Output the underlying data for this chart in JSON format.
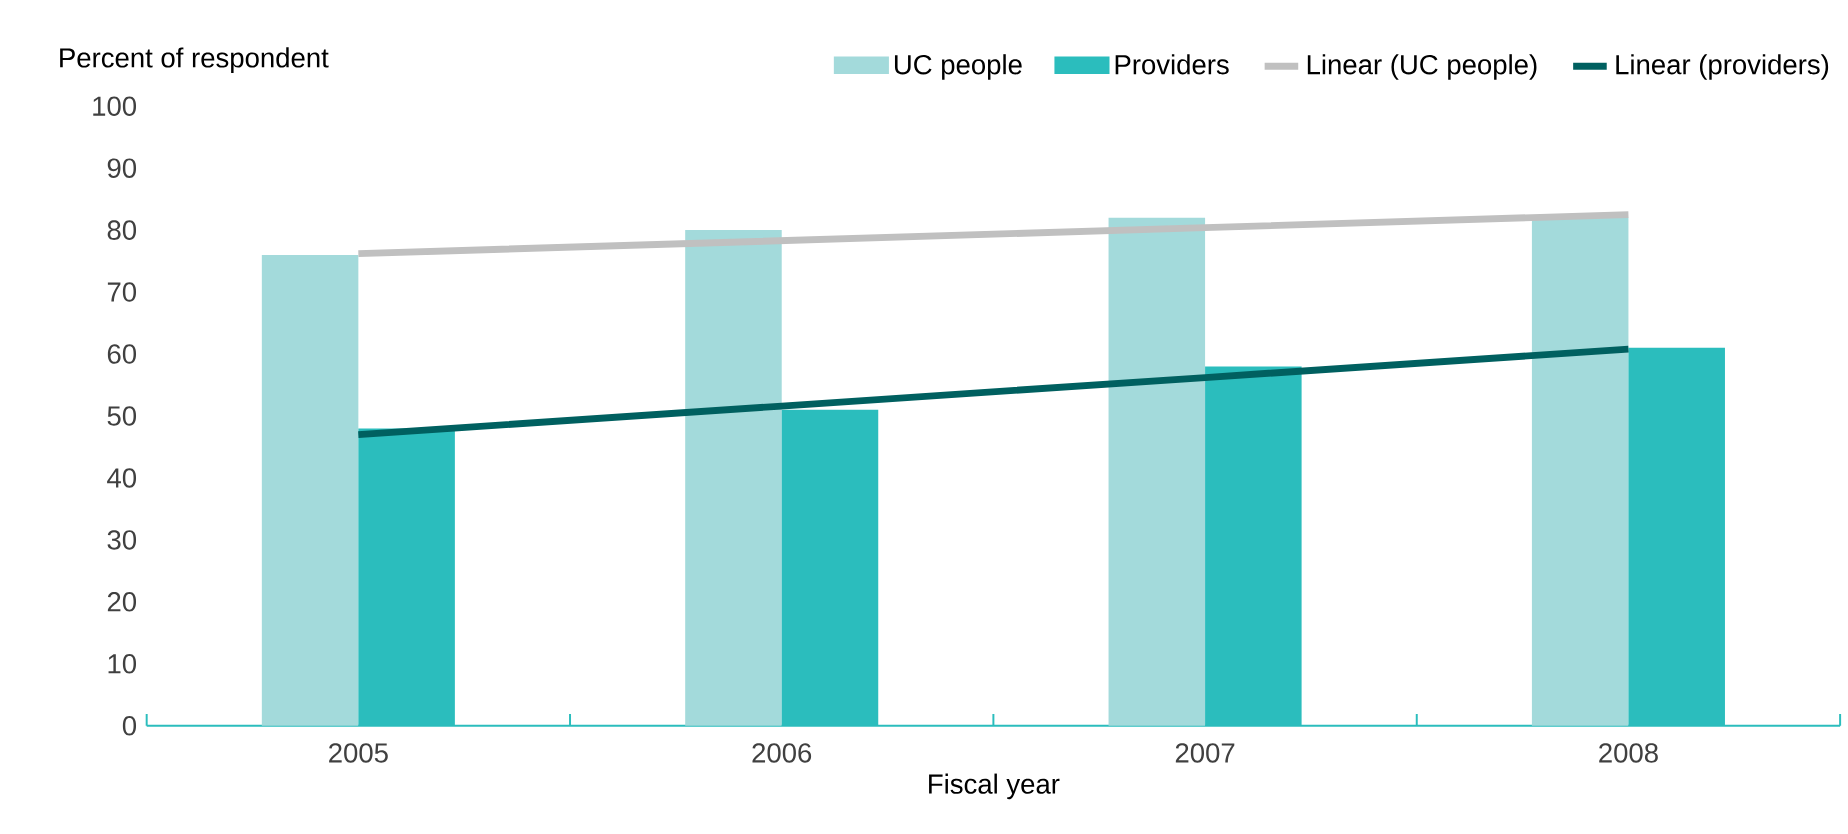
{
  "chart_data": {
    "type": "bar",
    "ylabel": "Percent of respondent",
    "xlabel": "Fiscal year",
    "categories": [
      "2005",
      "2006",
      "2007",
      "2008"
    ],
    "series": [
      {
        "name": "UC people",
        "color": "#a3dadb",
        "values": [
          76,
          80,
          82,
          82
        ]
      },
      {
        "name": "Providers",
        "color": "#2bbdbd",
        "values": [
          48,
          51,
          58,
          61
        ]
      },
      {
        "name": "Linear (UC people)",
        "type": "line",
        "color": "#c0c0c0",
        "values": [
          76.2,
          78.3,
          80.4,
          82.5
        ]
      },
      {
        "name": "Linear (providers)",
        "type": "line",
        "color": "#006060",
        "values": [
          47,
          51.6,
          56.2,
          60.8
        ]
      }
    ],
    "ylim": [
      0,
      100
    ],
    "yticks": [
      0,
      10,
      20,
      30,
      40,
      50,
      60,
      70,
      80,
      90,
      100
    ],
    "legend": "top",
    "grid": false
  }
}
